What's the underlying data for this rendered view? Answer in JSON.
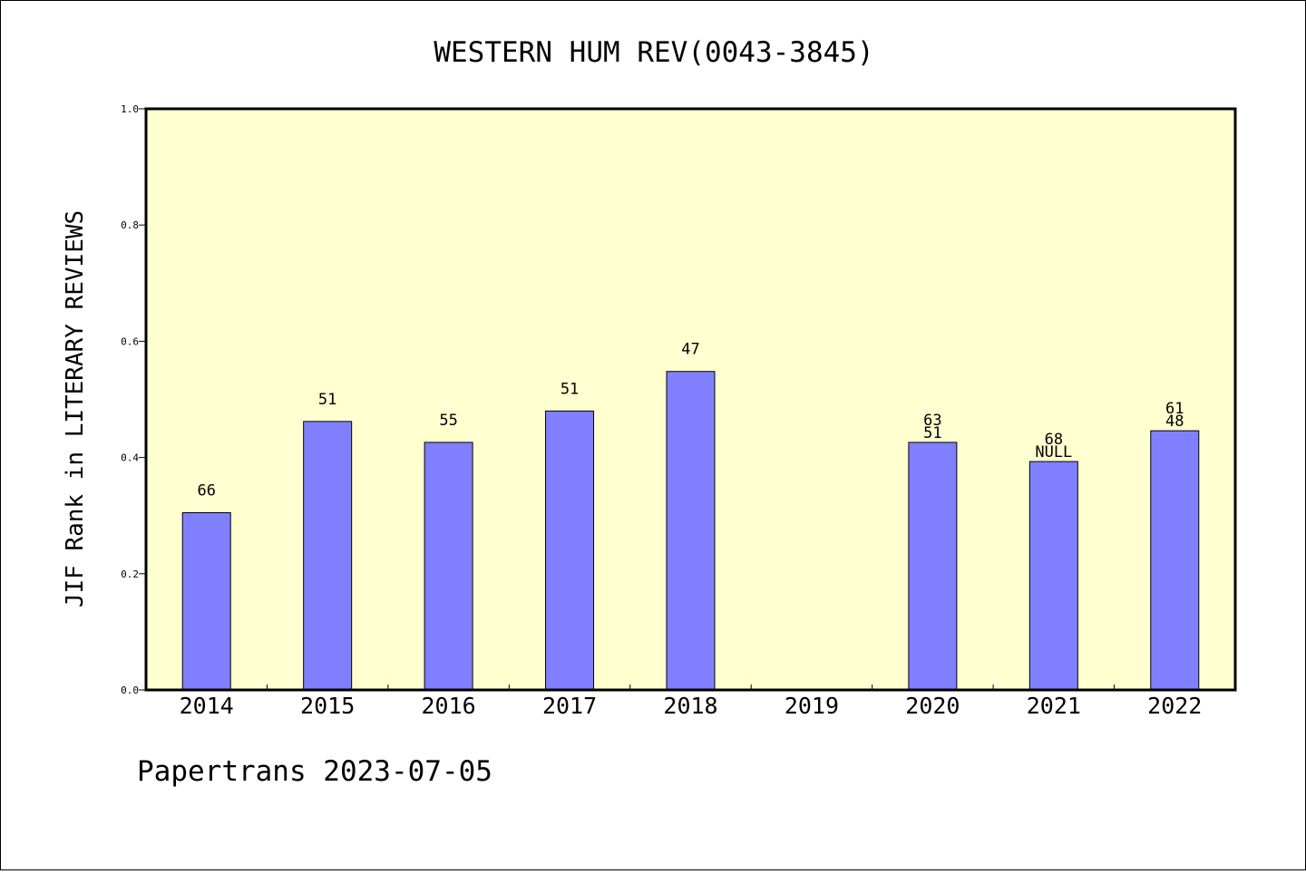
{
  "chart_data": {
    "type": "bar",
    "title": "WESTERN HUM REV(0043-3845)",
    "xlabel": "",
    "ylabel": "JIF Rank in LITERARY REVIEWS",
    "ylim": [
      0,
      1.0
    ],
    "yticks": [
      "0.0",
      "0.2",
      "0.4",
      "0.6",
      "0.8",
      "1.0"
    ],
    "grid": false,
    "colors": {
      "plot_background": "#ffffd0",
      "bar_fill": "#8080ff",
      "bar_stroke": "#000000"
    },
    "categories": [
      "2014",
      "2015",
      "2016",
      "2017",
      "2018",
      "2019",
      "2020",
      "2021",
      "2022"
    ],
    "values": [
      0.305,
      0.462,
      0.426,
      0.48,
      0.548,
      null,
      0.426,
      0.393,
      0.446
    ],
    "bar_labels": [
      [
        "66"
      ],
      [
        "51"
      ],
      [
        "55"
      ],
      [
        "51"
      ],
      [
        "47"
      ],
      [],
      [
        "63",
        "51"
      ],
      [
        "68",
        "NULL"
      ],
      [
        "61",
        "48"
      ]
    ]
  },
  "footer": {
    "text": "Papertrans 2023-07-05"
  }
}
